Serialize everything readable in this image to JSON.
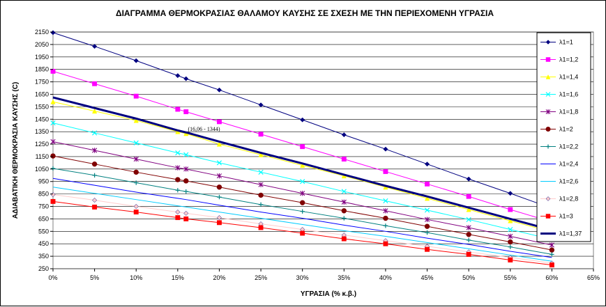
{
  "chart_data": {
    "type": "line",
    "title": "ΔΙΑΓΡΑΜΜΑ ΘΕΡΜΟΚΡΑΣΙΑΣ ΘΑΛΑΜΟΥ ΚΑΥΣΗΣ ΣΕ ΣΧΕΣΗ ΜΕ ΤΗΝ ΠΕΡΙΕΧΟΜΕΝΗ ΥΓΡΑΣΙΑ",
    "xlabel": "ΥΓΡΑΣΙΑ (% κ.β.)",
    "ylabel": "ΑΔΙΑΒΑΤΙΚΗ ΘΕΡΜΟΚΡΑΣΙΑ ΚΑΥΣΗΣ (C)",
    "xlim": [
      0,
      65
    ],
    "ylim": [
      250,
      2150
    ],
    "xticks": [
      0,
      5,
      10,
      15,
      20,
      25,
      30,
      35,
      40,
      45,
      50,
      55,
      60,
      65
    ],
    "xtick_labels": [
      "0%",
      "5%",
      "10%",
      "15%",
      "20%",
      "25%",
      "30%",
      "35%",
      "40%",
      "45%",
      "50%",
      "55%",
      "60%",
      "65%"
    ],
    "yticks": [
      250,
      350,
      450,
      550,
      650,
      750,
      850,
      950,
      1050,
      1150,
      1250,
      1350,
      1450,
      1550,
      1650,
      1750,
      1850,
      1950,
      2050,
      2150
    ],
    "ytick_labels": [
      "250",
      "350",
      "450",
      "550",
      "650",
      "750",
      "850",
      "950",
      "1050",
      "1150",
      "1250",
      "1350",
      "1450",
      "1550",
      "1650",
      "1750",
      "1850",
      "1950",
      "2050",
      "2150"
    ],
    "grid": true,
    "legend_position": "right",
    "x": [
      0,
      5,
      10,
      15,
      16,
      20,
      25,
      30,
      35,
      40,
      45,
      50,
      55,
      60
    ],
    "series": [
      {
        "name": "λ1=1",
        "color": "#000080",
        "marker": "diamond",
        "values": [
          2145,
          2035,
          1920,
          1800,
          1775,
          1685,
          1565,
          1445,
          1325,
          1210,
          1090,
          970,
          855,
          735
        ]
      },
      {
        "name": "λ1=1,2",
        "color": "#ff00ff",
        "marker": "square",
        "values": [
          1835,
          1735,
          1635,
          1530,
          1510,
          1430,
          1330,
          1230,
          1130,
          1030,
          930,
          830,
          725,
          625
        ]
      },
      {
        "name": "λ1=1,4",
        "color": "#ffff00",
        "marker": "triangle",
        "values": [
          1590,
          1515,
          1440,
          1350,
          1335,
          1250,
          1165,
          1080,
          995,
          905,
          815,
          725,
          635,
          545
        ]
      },
      {
        "name": "λ1=1,6",
        "color": "#00ffff",
        "marker": "x",
        "values": [
          1420,
          1340,
          1260,
          1180,
          1165,
          1100,
          1025,
          950,
          870,
          795,
          720,
          645,
          565,
          485
        ]
      },
      {
        "name": "λ1=1,8",
        "color": "#800080",
        "marker": "star",
        "values": [
          1270,
          1200,
          1130,
          1060,
          1050,
          995,
          925,
          855,
          785,
          715,
          645,
          580,
          510,
          440
        ]
      },
      {
        "name": "λ1=2",
        "color": "#800000",
        "marker": "circle",
        "values": [
          1155,
          1090,
          1025,
          965,
          955,
          905,
          840,
          780,
          715,
          655,
          590,
          525,
          465,
          400
        ]
      },
      {
        "name": "λ1=2,2",
        "color": "#008080",
        "marker": "plus",
        "values": [
          1055,
          1000,
          940,
          880,
          870,
          825,
          765,
          710,
          655,
          595,
          540,
          480,
          425,
          365
        ]
      },
      {
        "name": "λ1=2,4",
        "color": "#0000ff",
        "marker": "none",
        "values": [
          975,
          920,
          865,
          815,
          805,
          760,
          705,
          655,
          600,
          550,
          495,
          445,
          390,
          340
        ]
      },
      {
        "name": "λ1=2,6",
        "color": "#00ccff",
        "marker": "none",
        "values": [
          905,
          855,
          805,
          755,
          745,
          705,
          655,
          605,
          555,
          510,
          460,
          410,
          360,
          310
        ]
      },
      {
        "name": "λ1=2,8",
        "color": "#ffcccc",
        "marker": "diamond",
        "values": [
          845,
          800,
          750,
          705,
          695,
          660,
          610,
          565,
          520,
          475,
          430,
          385,
          340,
          295
        ]
      },
      {
        "name": "λ1=3",
        "color": "#ff0000",
        "marker": "square",
        "values": [
          790,
          745,
          705,
          660,
          650,
          620,
          580,
          535,
          490,
          450,
          405,
          365,
          320,
          280
        ]
      },
      {
        "name": "λ1=1,37",
        "color": "#000080",
        "marker": "none",
        "bold": true,
        "values": [
          1625,
          1540,
          1455,
          1360,
          1344,
          1270,
          1180,
          1095,
          1005,
          915,
          830,
          740,
          650,
          560
        ]
      }
    ],
    "annotations": [
      {
        "text": "(16,06 - 1344)",
        "x": 16.06,
        "y": 1344
      }
    ]
  }
}
